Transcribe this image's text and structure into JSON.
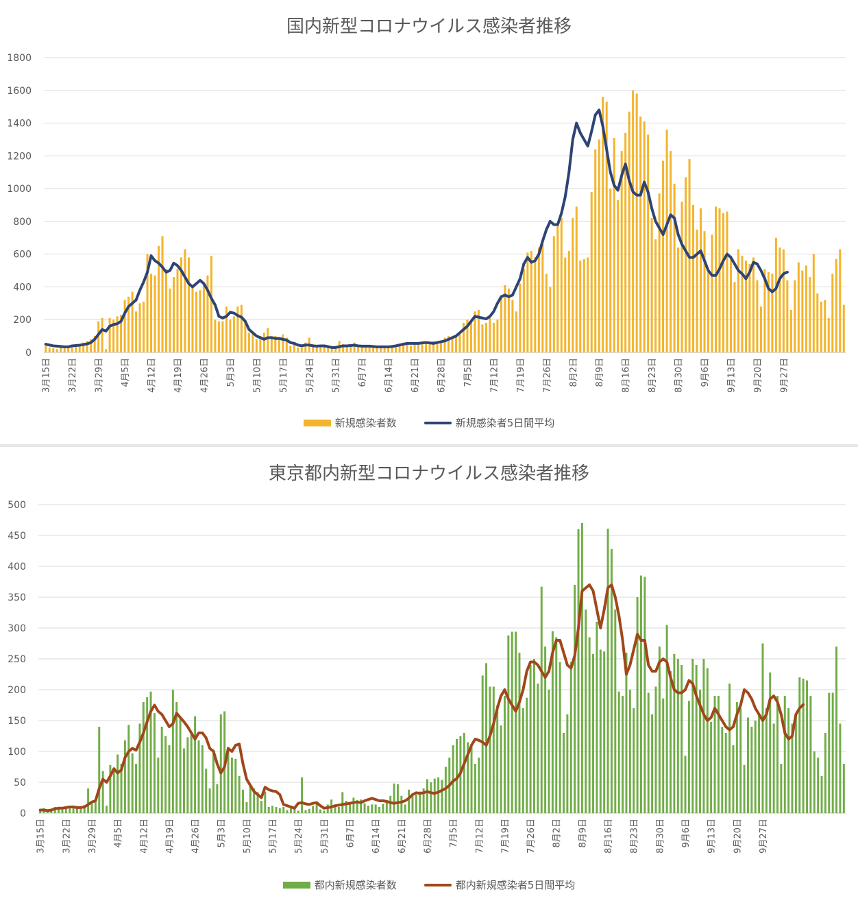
{
  "chart_data": [
    {
      "type": "bar+line",
      "title": "国内新型コロナウイルス感染者推移",
      "ylim": [
        0,
        1800
      ],
      "yticks": [
        "0",
        "200",
        "400",
        "600",
        "800",
        "1000",
        "1200",
        "1400",
        "1600",
        "1800"
      ],
      "grid": true,
      "legend": "bottom",
      "x_ticks": [
        "3月15日",
        "3月22日",
        "3月29日",
        "4月5日",
        "4月12日",
        "4月19日",
        "4月26日",
        "5月3日",
        "5月10日",
        "5月17日",
        "5月24日",
        "5月31日",
        "6月7日",
        "6月14日",
        "6月21日",
        "6月28日",
        "7月5日",
        "7月12日",
        "7月19日",
        "7月26日",
        "8月2日",
        "8月9日",
        "8月16日",
        "8月23日",
        "8月30日",
        "9月6日",
        "9月13日",
        "9月20日",
        "9月27日"
      ],
      "bar_name": "新規感染者数",
      "bar_color": "#F4B42C",
      "line_name": "新規感染者5日間平均",
      "line_color": "#2D4474",
      "bar_values": [
        40,
        30,
        25,
        20,
        40,
        25,
        30,
        35,
        40,
        50,
        60,
        70,
        80,
        100,
        190,
        210,
        20,
        210,
        200,
        220,
        230,
        320,
        340,
        370,
        250,
        300,
        310,
        600,
        480,
        470,
        650,
        710,
        510,
        390,
        460,
        510,
        580,
        630,
        580,
        400,
        370,
        380,
        420,
        470,
        590,
        200,
        190,
        190,
        280,
        200,
        220,
        280,
        290,
        200,
        120,
        110,
        80,
        100,
        120,
        150,
        100,
        100,
        80,
        110,
        90,
        40,
        50,
        30,
        30,
        60,
        90,
        50,
        40,
        40,
        40,
        30,
        30,
        40,
        70,
        50,
        40,
        50,
        60,
        40,
        40,
        40,
        30,
        30,
        40,
        40,
        30,
        30,
        40,
        40,
        50,
        60,
        60,
        40,
        60,
        60,
        50,
        60,
        60,
        70,
        70,
        70,
        90,
        100,
        90,
        100,
        110,
        180,
        200,
        190,
        250,
        260,
        170,
        180,
        210,
        180,
        200,
        350,
        410,
        390,
        320,
        250,
        420,
        510,
        610,
        620,
        580,
        640,
        660,
        480,
        400,
        710,
        790,
        820,
        580,
        620,
        820,
        890,
        560,
        570,
        580,
        980,
        1240,
        1300,
        1560,
        1530,
        1000,
        1310,
        930,
        1230,
        1340,
        1470,
        1600,
        1580,
        1440,
        1410,
        1330,
        820,
        690,
        970,
        1170,
        1360,
        1230,
        1030,
        640,
        920,
        1070,
        1180,
        900,
        750,
        880,
        740,
        490,
        720,
        890,
        880,
        850,
        860,
        590,
        430,
        630,
        590,
        560,
        540,
        580,
        440,
        280,
        510,
        490,
        480,
        700,
        640,
        630,
        440,
        260,
        440,
        550,
        500,
        530,
        460,
        600,
        360,
        310,
        320,
        210,
        480,
        570,
        630,
        290
      ],
      "line_values": [
        50,
        45,
        40,
        38,
        36,
        34,
        34,
        40,
        42,
        44,
        48,
        52,
        60,
        80,
        110,
        140,
        130,
        160,
        170,
        175,
        190,
        240,
        280,
        300,
        320,
        380,
        430,
        490,
        590,
        560,
        545,
        520,
        490,
        500,
        545,
        530,
        500,
        460,
        420,
        400,
        420,
        440,
        420,
        380,
        330,
        290,
        220,
        210,
        220,
        245,
        240,
        225,
        215,
        190,
        140,
        120,
        100,
        90,
        80,
        90,
        90,
        85,
        85,
        80,
        75,
        60,
        55,
        45,
        40,
        45,
        45,
        40,
        38,
        40,
        40,
        35,
        30,
        30,
        35,
        40,
        40,
        42,
        44,
        40,
        38,
        38,
        38,
        36,
        34,
        34,
        34,
        34,
        36,
        40,
        45,
        50,
        55,
        55,
        55,
        55,
        58,
        60,
        58,
        55,
        60,
        65,
        70,
        80,
        90,
        100,
        120,
        140,
        160,
        190,
        220,
        215,
        210,
        205,
        220,
        250,
        300,
        340,
        350,
        340,
        350,
        400,
        450,
        540,
        580,
        550,
        560,
        600,
        680,
        750,
        800,
        780,
        780,
        850,
        950,
        1100,
        1300,
        1400,
        1340,
        1300,
        1260,
        1350,
        1450,
        1480,
        1380,
        1240,
        1100,
        1020,
        990,
        1080,
        1150,
        1050,
        980,
        960,
        960,
        1040,
        980,
        880,
        800,
        760,
        720,
        780,
        840,
        820,
        720,
        660,
        620,
        580,
        580,
        600,
        620,
        560,
        500,
        470,
        470,
        510,
        560,
        600,
        580,
        540,
        500,
        480,
        450,
        490,
        550,
        540,
        500,
        450,
        390,
        370,
        390,
        450,
        480,
        490
      ]
    },
    {
      "type": "bar+line",
      "title": "東京都内新型コロナウイルス感染者推移",
      "ylim": [
        0,
        500
      ],
      "yticks": [
        "0",
        "50",
        "100",
        "150",
        "200",
        "250",
        "300",
        "350",
        "400",
        "450",
        "500"
      ],
      "grid": true,
      "legend": "bottom",
      "x_ticks": [
        "3月15日",
        "3月22日",
        "3月29日",
        "4月5日",
        "4月12日",
        "4月19日",
        "4月26日",
        "5月3日",
        "5月10日",
        "5月17日",
        "5月24日",
        "5月31日",
        "6月7日",
        "6月14日",
        "6月21日",
        "6月28日",
        "7月5日",
        "7月12日",
        "7月19日",
        "7月26日",
        "8月2日",
        "8月9日",
        "8月16日",
        "8月23日",
        "8月30日",
        "9月6日",
        "9月13日",
        "9月20日",
        "9月27日"
      ],
      "bar_name": "都内新規感染者数",
      "bar_color": "#70AD47",
      "line_name": "都内新規感染者5日間平均",
      "line_color": "#A0471B",
      "bar_values": [
        5,
        8,
        5,
        4,
        10,
        7,
        6,
        9,
        10,
        12,
        8,
        7,
        13,
        40,
        18,
        20,
        140,
        68,
        12,
        78,
        70,
        95,
        80,
        118,
        143,
        97,
        80,
        145,
        180,
        188,
        197,
        162,
        90,
        140,
        125,
        110,
        200,
        180,
        155,
        105,
        123,
        128,
        157,
        118,
        110,
        72,
        40,
        103,
        47,
        160,
        165,
        105,
        90,
        88,
        60,
        38,
        18,
        44,
        40,
        34,
        20,
        35,
        10,
        12,
        10,
        8,
        10,
        5,
        12,
        8,
        4,
        58,
        5,
        7,
        12,
        17,
        6,
        4,
        14,
        22,
        11,
        10,
        34,
        20,
        16,
        25,
        21,
        22,
        16,
        12,
        14,
        14,
        10,
        15,
        20,
        28,
        48,
        47,
        28,
        14,
        38,
        32,
        30,
        35,
        40,
        55,
        50,
        56,
        58,
        54,
        75,
        90,
        110,
        120,
        125,
        130,
        115,
        110,
        80,
        90,
        223,
        243,
        205,
        205,
        175,
        142,
        190,
        288,
        294,
        294,
        260,
        170,
        187,
        240,
        250,
        210,
        367,
        270,
        200,
        295,
        285,
        245,
        130,
        160,
        245,
        370,
        460,
        470,
        330,
        285,
        258,
        310,
        265,
        262,
        461,
        428,
        330,
        197,
        190,
        260,
        200,
        170,
        350,
        385,
        383,
        195,
        160,
        205,
        270,
        186,
        305,
        230,
        258,
        250,
        240,
        93,
        182,
        250,
        240,
        200,
        250,
        235,
        148,
        190,
        190,
        140,
        130,
        210,
        110,
        180,
        170,
        78,
        155,
        140,
        150,
        160,
        275,
        170,
        228,
        145,
        190,
        80,
        190,
        170,
        145,
        160,
        220,
        218,
        215,
        190,
        100,
        90,
        60,
        130,
        195,
        195,
        270,
        145,
        80
      ],
      "line_values": [
        5,
        5,
        4,
        5,
        7,
        8,
        8,
        9,
        10,
        10,
        9,
        9,
        10,
        14,
        18,
        20,
        40,
        55,
        50,
        60,
        72,
        65,
        70,
        90,
        100,
        105,
        102,
        115,
        130,
        148,
        165,
        175,
        165,
        160,
        150,
        140,
        145,
        162,
        155,
        148,
        140,
        130,
        120,
        130,
        130,
        122,
        105,
        100,
        80,
        65,
        75,
        105,
        100,
        110,
        112,
        80,
        55,
        45,
        35,
        30,
        25,
        42,
        38,
        36,
        35,
        30,
        14,
        12,
        10,
        8,
        16,
        17,
        15,
        14,
        16,
        17,
        12,
        8,
        9,
        10,
        12,
        13,
        14,
        15,
        16,
        17,
        18,
        17,
        20,
        22,
        24,
        22,
        20,
        20,
        19,
        17,
        16,
        17,
        18,
        20,
        24,
        30,
        33,
        32,
        33,
        35,
        33,
        32,
        34,
        37,
        40,
        45,
        52,
        56,
        65,
        80,
        95,
        110,
        120,
        118,
        115,
        110,
        125,
        145,
        170,
        190,
        200,
        185,
        175,
        165,
        180,
        200,
        230,
        245,
        245,
        240,
        230,
        220,
        230,
        260,
        280,
        280,
        260,
        240,
        235,
        255,
        300,
        360,
        365,
        370,
        360,
        330,
        300,
        330,
        365,
        370,
        350,
        320,
        280,
        225,
        240,
        265,
        290,
        280,
        280,
        240,
        230,
        230,
        245,
        250,
        245,
        220,
        200,
        195,
        195,
        200,
        215,
        210,
        190,
        175,
        160,
        150,
        155,
        170,
        160,
        150,
        140,
        135,
        140,
        160,
        175,
        200,
        195,
        185,
        170,
        160,
        150,
        160,
        185,
        190,
        180,
        160,
        130,
        120,
        125,
        160,
        170,
        176
      ]
    }
  ]
}
